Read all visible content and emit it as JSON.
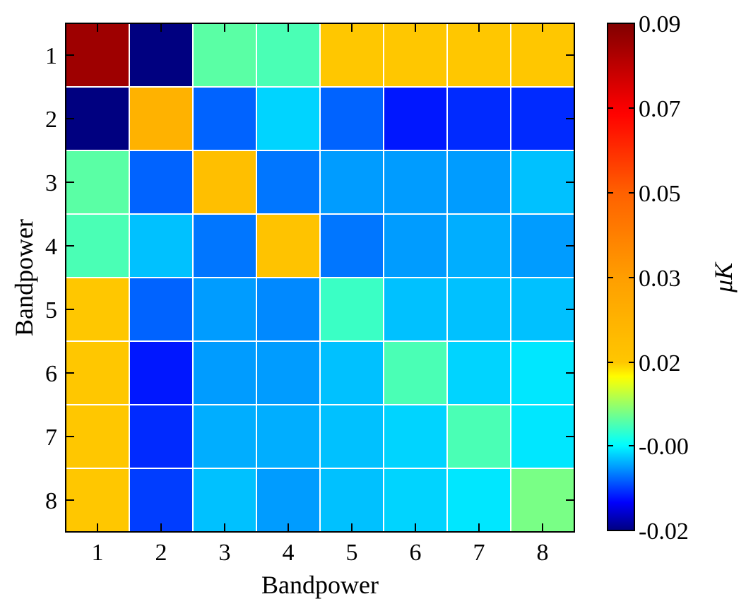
{
  "chart_data": {
    "type": "heatmap",
    "title": "",
    "xlabel": "Bandpower",
    "ylabel": "Bandpower",
    "x_categories": [
      "1",
      "2",
      "3",
      "4",
      "5",
      "6",
      "7",
      "8"
    ],
    "y_categories": [
      "1",
      "2",
      "3",
      "4",
      "5",
      "6",
      "7",
      "8"
    ],
    "values": [
      [
        0.085,
        -0.02,
        0.006,
        0.005,
        0.02,
        0.02,
        0.02,
        0.02
      ],
      [
        -0.02,
        0.025,
        -0.008,
        -0.002,
        -0.008,
        -0.012,
        -0.011,
        -0.011
      ],
      [
        0.006,
        -0.008,
        0.022,
        -0.007,
        -0.005,
        -0.005,
        -0.005,
        -0.003
      ],
      [
        0.005,
        -0.003,
        -0.007,
        0.021,
        -0.007,
        -0.005,
        -0.004,
        -0.005
      ],
      [
        0.02,
        -0.008,
        -0.005,
        -0.006,
        0.004,
        -0.003,
        -0.003,
        -0.003
      ],
      [
        0.02,
        -0.012,
        -0.005,
        -0.005,
        -0.003,
        0.005,
        -0.002,
        -0.001
      ],
      [
        0.02,
        -0.011,
        -0.004,
        -0.004,
        -0.003,
        -0.002,
        0.005,
        -0.001
      ],
      [
        0.02,
        -0.01,
        -0.003,
        -0.005,
        -0.003,
        -0.002,
        -0.001,
        0.008
      ]
    ],
    "colorbar": {
      "label": "μK",
      "ticks": [
        "0.09",
        "0.07",
        "0.05",
        "0.03",
        "0.02",
        "-0.00",
        "-0.02"
      ],
      "tick_values": [
        0.09,
        0.07,
        0.05,
        0.03,
        0.02,
        0.0,
        -0.02
      ],
      "colormap": "jet",
      "min": -0.02,
      "max": 0.09
    },
    "grid": true,
    "grid_color": "#ffffff"
  }
}
